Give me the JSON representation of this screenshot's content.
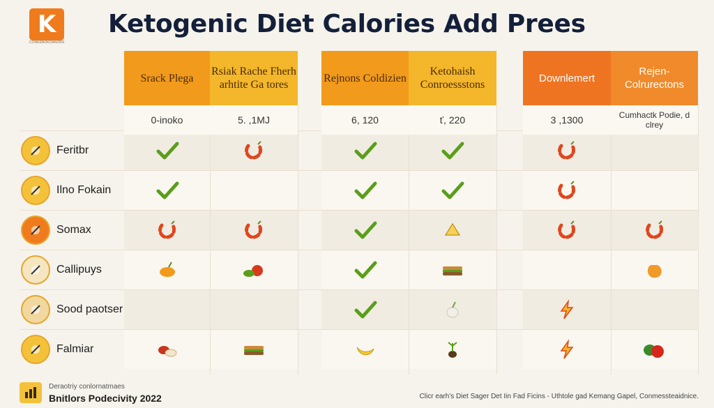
{
  "brand": {
    "logo_letter": "K",
    "logo_caption": "CONKENOKOANORS"
  },
  "title": "Ketogenic Diet Calories Add Prees",
  "columns": [
    {
      "header": "Srack Plega",
      "value": "0-inoko"
    },
    {
      "header": "Rsiak Rache Fherh arhtite Ga tores",
      "value": "5. ,1MJ"
    },
    {
      "header": "Rejnons Coldizien",
      "value": "6, 120"
    },
    {
      "header": "Ketohaish Conroessstons",
      "value": "ť, 220"
    },
    {
      "header": "Downlemert",
      "value": "3 ,1300"
    },
    {
      "header": "Rejen- Colrurectons",
      "value": "Cumhactk Podie, d clrey"
    }
  ],
  "rows": [
    {
      "label": "Feritbr",
      "icon": "axe-icon",
      "cells": [
        "check",
        "pepper",
        "check",
        "check",
        "pepper",
        ""
      ]
    },
    {
      "label": "Ilno Fokain",
      "icon": "coin-icon",
      "cells": [
        "check",
        "",
        "check",
        "check",
        "pepper",
        ""
      ]
    },
    {
      "label": "Somax",
      "icon": "wrench-icon",
      "cells": [
        "pepper",
        "pepper",
        "check",
        "cheese",
        "pepper",
        "pepper"
      ]
    },
    {
      "label": "Callipuys",
      "icon": "tools-icon",
      "cells": [
        "mango",
        "veggies",
        "check",
        "sandwich",
        "",
        "squash"
      ]
    },
    {
      "label": "Sood paotser",
      "icon": "seeds-icon",
      "cells": [
        "",
        "",
        "check",
        "garlic",
        "lightning",
        ""
      ]
    },
    {
      "label": "Falmiar",
      "icon": "fish-icon",
      "cells": [
        "meat",
        "sandwich",
        "banana",
        "sprout",
        "lightning",
        "apple"
      ]
    }
  ],
  "footer": {
    "left_line1": "Deraotriy conlornatmaes",
    "left_line2": "Bnitlors Podecivity 2022",
    "right": "Clicr earh's Diet Sager Det Iin Fad Ficins - Uthtole gad Kemang Gapel, Conmessteaidnice."
  },
  "colors": {
    "orange": "#f29a1c",
    "yellow": "#f4b62a",
    "deep_orange": "#ef7422",
    "check_green": "#5a9e1c",
    "pepper_red": "#e0461e",
    "title_navy": "#14203a"
  }
}
